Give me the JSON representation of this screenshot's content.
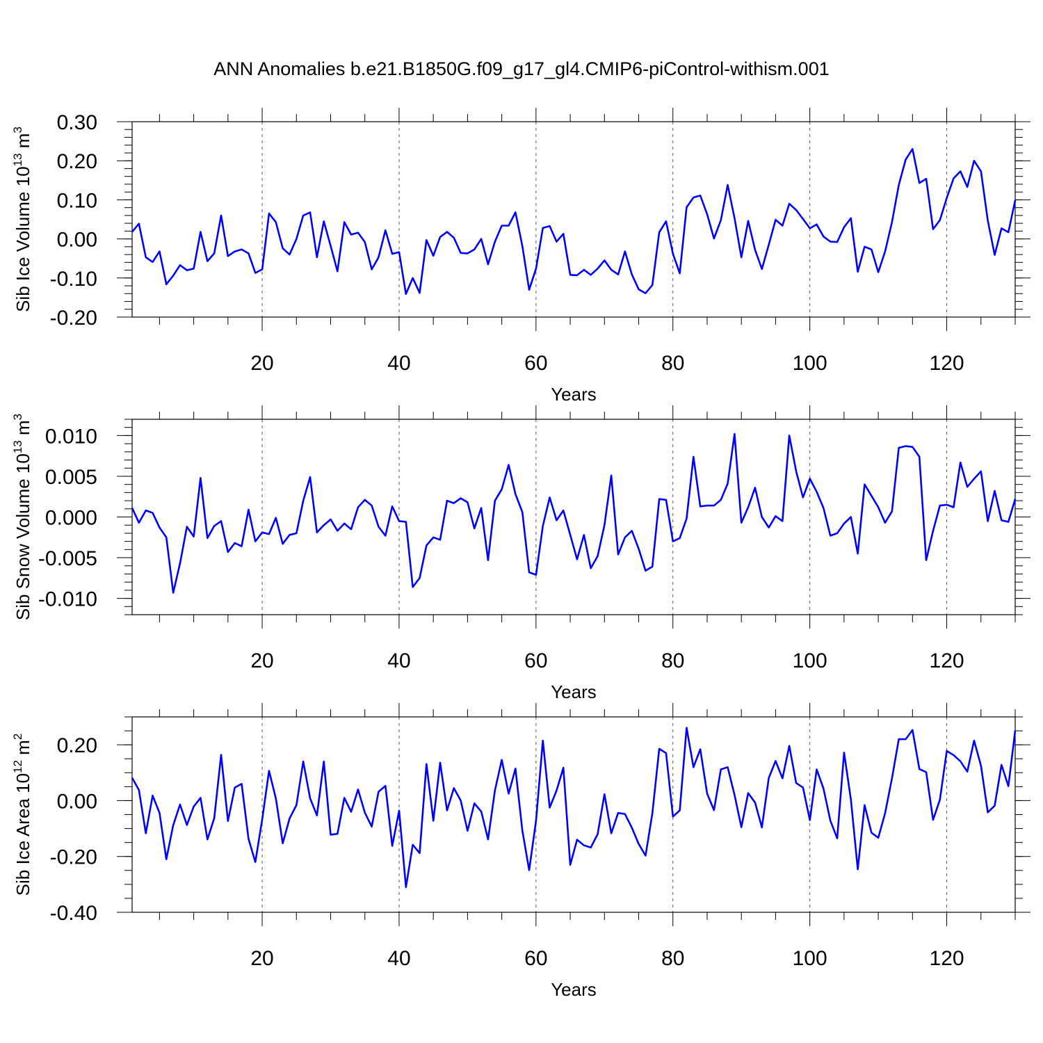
{
  "title": "ANN Anomalies b.e21.B1850G.f09_g17_gl4.CMIP6-piControl-withism.001",
  "line_color": "#0000ff",
  "chart_data": [
    {
      "type": "line",
      "ylabel": {
        "text": "Sib Ice Volume 10",
        "exp": "13",
        "unit": " m",
        "unit_exp": "3"
      },
      "xlabel": "Years",
      "xlim": [
        1,
        130
      ],
      "ylim": [
        -0.2,
        0.3
      ],
      "xticks": [
        20,
        40,
        60,
        80,
        100,
        120
      ],
      "xtick_labels": [
        "20",
        "40",
        "60",
        "80",
        "100",
        "120"
      ],
      "yticks": [
        -0.2,
        -0.1,
        0.0,
        0.1,
        0.2,
        0.3
      ],
      "ytick_labels": [
        "-0.20",
        "-0.10",
        "0.00",
        "0.10",
        "0.20",
        "0.30"
      ],
      "y_minor_step": 0.02,
      "x": [
        1,
        2,
        3,
        4,
        5,
        6,
        7,
        8,
        9,
        10,
        11,
        12,
        13,
        14,
        15,
        16,
        17,
        18,
        19,
        20,
        21,
        22,
        23,
        24,
        25,
        26,
        27,
        28,
        29,
        30,
        31,
        32,
        33,
        34,
        35,
        36,
        37,
        38,
        39,
        40,
        41,
        42,
        43,
        44,
        45,
        46,
        47,
        48,
        49,
        50,
        51,
        52,
        53,
        54,
        55,
        56,
        57,
        58,
        59,
        60,
        61,
        62,
        63,
        64,
        65,
        66,
        67,
        68,
        69,
        70,
        71,
        72,
        73,
        74,
        75,
        76,
        77,
        78,
        79,
        80,
        81,
        82,
        83,
        84,
        85,
        86,
        87,
        88,
        89,
        90,
        91,
        92,
        93,
        94,
        95,
        96,
        97,
        98,
        99,
        100,
        101,
        102,
        103,
        104,
        105,
        106,
        107,
        108,
        109,
        110,
        111,
        112,
        113,
        114,
        115,
        116,
        117,
        118,
        119,
        120,
        121,
        122,
        123,
        124,
        125,
        126,
        127,
        128,
        129,
        130
      ],
      "y": [
        0.018,
        0.039,
        -0.047,
        -0.059,
        -0.032,
        -0.116,
        -0.094,
        -0.067,
        -0.08,
        -0.076,
        0.018,
        -0.057,
        -0.037,
        0.06,
        -0.044,
        -0.032,
        -0.027,
        -0.037,
        -0.087,
        -0.078,
        0.065,
        0.043,
        -0.024,
        -0.04,
        0.0,
        0.06,
        0.068,
        -0.047,
        0.045,
        -0.018,
        -0.083,
        0.043,
        0.011,
        0.016,
        -0.008,
        -0.078,
        -0.047,
        0.022,
        -0.038,
        -0.034,
        -0.141,
        -0.1,
        -0.138,
        -0.003,
        -0.043,
        0.005,
        0.018,
        0.003,
        -0.036,
        -0.037,
        -0.027,
        0.0,
        -0.065,
        -0.007,
        0.034,
        0.034,
        0.068,
        -0.018,
        -0.13,
        -0.076,
        0.028,
        0.033,
        -0.007,
        0.013,
        -0.092,
        -0.093,
        -0.079,
        -0.092,
        -0.076,
        -0.055,
        -0.079,
        -0.091,
        -0.032,
        -0.091,
        -0.129,
        -0.139,
        -0.118,
        0.017,
        0.045,
        -0.038,
        -0.088,
        0.081,
        0.106,
        0.111,
        0.063,
        0.001,
        0.048,
        0.138,
        0.053,
        -0.047,
        0.046,
        -0.028,
        -0.077,
        -0.015,
        0.049,
        0.034,
        0.09,
        0.074,
        0.051,
        0.027,
        0.037,
        0.006,
        -0.007,
        -0.008,
        0.03,
        0.053,
        -0.084,
        -0.02,
        -0.027,
        -0.085,
        -0.032,
        0.043,
        0.138,
        0.203,
        0.23,
        0.143,
        0.154,
        0.025,
        0.048,
        0.105,
        0.155,
        0.173,
        0.133,
        0.2,
        0.173,
        0.047,
        -0.041,
        0.027,
        0.017,
        0.099
      ]
    },
    {
      "type": "line",
      "ylabel": {
        "text": "Sib Snow Volume 10",
        "exp": "13",
        "unit": " m",
        "unit_exp": "3"
      },
      "xlabel": "Years",
      "xlim": [
        1,
        130
      ],
      "ylim": [
        -0.012,
        0.012
      ],
      "xticks": [
        20,
        40,
        60,
        80,
        100,
        120
      ],
      "xtick_labels": [
        "20",
        "40",
        "60",
        "80",
        "100",
        "120"
      ],
      "yticks": [
        -0.01,
        -0.005,
        0.0,
        0.005,
        0.01
      ],
      "ytick_labels": [
        "-0.010",
        "-0.005",
        "0.000",
        "0.005",
        "0.010"
      ],
      "y_minor_step": 0.001,
      "x": [
        1,
        2,
        3,
        4,
        5,
        6,
        7,
        8,
        9,
        10,
        11,
        12,
        13,
        14,
        15,
        16,
        17,
        18,
        19,
        20,
        21,
        22,
        23,
        24,
        25,
        26,
        27,
        28,
        29,
        30,
        31,
        32,
        33,
        34,
        35,
        36,
        37,
        38,
        39,
        40,
        41,
        42,
        43,
        44,
        45,
        46,
        47,
        48,
        49,
        50,
        51,
        52,
        53,
        54,
        55,
        56,
        57,
        58,
        59,
        60,
        61,
        62,
        63,
        64,
        65,
        66,
        67,
        68,
        69,
        70,
        71,
        72,
        73,
        74,
        75,
        76,
        77,
        78,
        79,
        80,
        81,
        82,
        83,
        84,
        85,
        86,
        87,
        88,
        89,
        90,
        91,
        92,
        93,
        94,
        95,
        96,
        97,
        98,
        99,
        100,
        101,
        102,
        103,
        104,
        105,
        106,
        107,
        108,
        109,
        110,
        111,
        112,
        113,
        114,
        115,
        116,
        117,
        118,
        119,
        120,
        121,
        122,
        123,
        124,
        125,
        126,
        127,
        128,
        129,
        130
      ],
      "y": [
        0.0011,
        -0.0007,
        0.0008,
        0.0005,
        -0.0013,
        -0.0025,
        -0.0093,
        -0.0057,
        -0.0012,
        -0.0024,
        0.0048,
        -0.0026,
        -0.0011,
        -0.0005,
        -0.0043,
        -0.0032,
        -0.0036,
        0.0009,
        -0.003,
        -0.0019,
        -0.0021,
        -0.0001,
        -0.0033,
        -0.0022,
        -0.002,
        0.002,
        0.0049,
        -0.0019,
        -0.001,
        -0.0003,
        -0.0017,
        -0.0008,
        -0.0015,
        0.0012,
        0.0021,
        0.0014,
        -0.0012,
        -0.0023,
        0.0013,
        -0.0005,
        -0.0006,
        -0.0086,
        -0.0075,
        -0.0035,
        -0.0025,
        -0.0028,
        0.002,
        0.0017,
        0.0023,
        0.0018,
        -0.0014,
        0.0011,
        -0.0053,
        0.002,
        0.0034,
        0.0064,
        0.0028,
        0.0006,
        -0.0068,
        -0.0071,
        -0.0011,
        0.0024,
        -0.0004,
        0.0008,
        -0.0022,
        -0.0052,
        -0.0022,
        -0.0063,
        -0.0048,
        -0.001,
        0.0051,
        -0.0046,
        -0.0025,
        -0.0017,
        -0.0039,
        -0.0066,
        -0.0061,
        0.0022,
        0.0021,
        -0.003,
        -0.0026,
        -0.0002,
        0.0074,
        0.0013,
        0.0014,
        0.0014,
        0.0021,
        0.0041,
        0.0102,
        -0.0007,
        0.0012,
        0.0036,
        0.0,
        -0.0013,
        0.0001,
        -0.0005,
        0.01,
        0.0056,
        0.0024,
        0.0047,
        0.0031,
        0.0011,
        -0.0023,
        -0.002,
        -0.0008,
        0.0,
        -0.0045,
        0.004,
        0.0026,
        0.0012,
        -0.0007,
        0.0007,
        0.0085,
        0.0087,
        0.0086,
        0.0074,
        -0.0053,
        -0.0017,
        0.0014,
        0.0015,
        0.0012,
        0.0067,
        0.0037,
        0.0047,
        0.0056,
        -0.0005,
        0.0032,
        -0.0004,
        -0.0006,
        0.0022
      ]
    },
    {
      "type": "line",
      "ylabel": {
        "text": "Sib Ice Area 10",
        "exp": "12",
        "unit": " m",
        "unit_exp": "2"
      },
      "xlabel": "Years",
      "xlim": [
        1,
        130
      ],
      "ylim": [
        -0.4,
        0.3
      ],
      "xticks": [
        20,
        40,
        60,
        80,
        100,
        120
      ],
      "xtick_labels": [
        "20",
        "40",
        "60",
        "80",
        "100",
        "120"
      ],
      "yticks": [
        -0.4,
        -0.2,
        0.0,
        0.2
      ],
      "ytick_labels": [
        "-0.40",
        "-0.20",
        "0.00",
        "0.20"
      ],
      "y_minor_step": 0.05,
      "x": [
        1,
        2,
        3,
        4,
        5,
        6,
        7,
        8,
        9,
        10,
        11,
        12,
        13,
        14,
        15,
        16,
        17,
        18,
        19,
        20,
        21,
        22,
        23,
        24,
        25,
        26,
        27,
        28,
        29,
        30,
        31,
        32,
        33,
        34,
        35,
        36,
        37,
        38,
        39,
        40,
        41,
        42,
        43,
        44,
        45,
        46,
        47,
        48,
        49,
        50,
        51,
        52,
        53,
        54,
        55,
        56,
        57,
        58,
        59,
        60,
        61,
        62,
        63,
        64,
        65,
        66,
        67,
        68,
        69,
        70,
        71,
        72,
        73,
        74,
        75,
        76,
        77,
        78,
        79,
        80,
        81,
        82,
        83,
        84,
        85,
        86,
        87,
        88,
        89,
        90,
        91,
        92,
        93,
        94,
        95,
        96,
        97,
        98,
        99,
        100,
        101,
        102,
        103,
        104,
        105,
        106,
        107,
        108,
        109,
        110,
        111,
        112,
        113,
        114,
        115,
        116,
        117,
        118,
        119,
        120,
        121,
        122,
        123,
        124,
        125,
        126,
        127,
        128,
        129,
        130
      ],
      "y": [
        0.082,
        0.038,
        -0.117,
        0.018,
        -0.044,
        -0.21,
        -0.088,
        -0.014,
        -0.087,
        -0.021,
        0.01,
        -0.139,
        -0.063,
        0.164,
        -0.073,
        0.047,
        0.06,
        -0.137,
        -0.22,
        -0.067,
        0.107,
        0.008,
        -0.153,
        -0.064,
        -0.016,
        0.14,
        0.008,
        -0.053,
        0.14,
        -0.122,
        -0.119,
        0.01,
        -0.04,
        0.04,
        -0.043,
        -0.093,
        0.032,
        0.053,
        -0.162,
        -0.036,
        -0.31,
        -0.158,
        -0.188,
        0.131,
        -0.072,
        0.136,
        -0.035,
        0.045,
        0.0,
        -0.108,
        -0.01,
        -0.039,
        -0.139,
        0.037,
        0.146,
        0.025,
        0.115,
        -0.107,
        -0.249,
        -0.072,
        0.215,
        -0.025,
        0.036,
        0.118,
        -0.23,
        -0.14,
        -0.16,
        -0.168,
        -0.12,
        0.023,
        -0.117,
        -0.044,
        -0.048,
        -0.097,
        -0.155,
        -0.197,
        -0.045,
        0.186,
        0.17,
        -0.057,
        -0.035,
        0.261,
        0.12,
        0.184,
        0.025,
        -0.034,
        0.112,
        0.12,
        0.02,
        -0.095,
        0.027,
        -0.007,
        -0.096,
        0.081,
        0.142,
        0.08,
        0.196,
        0.063,
        0.047,
        -0.07,
        0.112,
        0.043,
        -0.072,
        -0.135,
        0.172,
        0.004,
        -0.246,
        -0.016,
        -0.115,
        -0.133,
        -0.045,
        0.08,
        0.22,
        0.22,
        0.253,
        0.113,
        0.102,
        -0.069,
        0.003,
        0.178,
        0.163,
        0.141,
        0.104,
        0.215,
        0.125,
        -0.042,
        -0.018,
        0.128,
        0.052,
        0.251
      ]
    }
  ]
}
